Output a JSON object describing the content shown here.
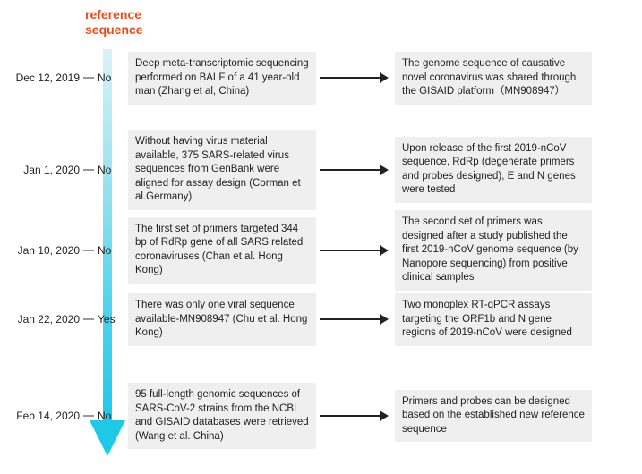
{
  "header": {
    "title_line1": "reference",
    "title_line2": "sequence"
  },
  "colors": {
    "header_text": "#e84e1c",
    "box_bg": "#efefef",
    "arrow_gradient_top": "#d9f2f7",
    "arrow_gradient_bottom": "#1ec9e8",
    "arrow_head": "#1ec9e8",
    "text": "#222222",
    "background": "#ffffff"
  },
  "layout": {
    "row_tops": [
      58,
      145,
      235,
      328,
      428
    ],
    "box_left_width": 210,
    "box_right_width": 220,
    "connector_width": 80,
    "date_width": 95
  },
  "rows": [
    {
      "date": "Dec 12, 2019",
      "ref": "No",
      "left": "Deep meta-transcriptomic sequencing performed on BALF of a 41 year-old man (Zhang et al, China)",
      "right": "The genome sequence of causative novel coronavirus was shared through the GISAID platform（MN908947）"
    },
    {
      "date": "Jan 1, 2020",
      "ref": "No",
      "left": "Without having virus material available, 375 SARS-related virus sequences from GenBank  were aligned  for assay design (Corman et al.Germany)",
      "right": "Upon release of the first 2019-nCoV sequence, RdRp (degenerate primers and probes designed), E and N genes were tested"
    },
    {
      "date": "Jan 10, 2020",
      "ref": "No",
      "left": "The first set of primers targeted 344 bp of RdRp gene of all SARS related coronaviruses (Chan et al. Hong Kong)",
      "right": "The second set of primers was designed after a study published the first 2019-nCoV genome sequence (by Nanopore sequencing) from positive clinical samples"
    },
    {
      "date": "Jan 22, 2020",
      "ref": "Yes",
      "left": "There was only one viral sequence available-MN908947 (Chu et al. Hong Kong)",
      "right": "Two monoplex  RT-qPCR assays targeting the ORF1b and N gene regions of 2019-nCoV were designed"
    },
    {
      "date": "Feb 14, 2020",
      "ref": "No",
      "left": "95 full-length genomic sequences of SARS-CoV-2 strains from the NCBI and GISAID databases were retrieved  (Wang et al. China)",
      "right": "Primers and probes can be designed based on the  established new reference sequence"
    }
  ]
}
